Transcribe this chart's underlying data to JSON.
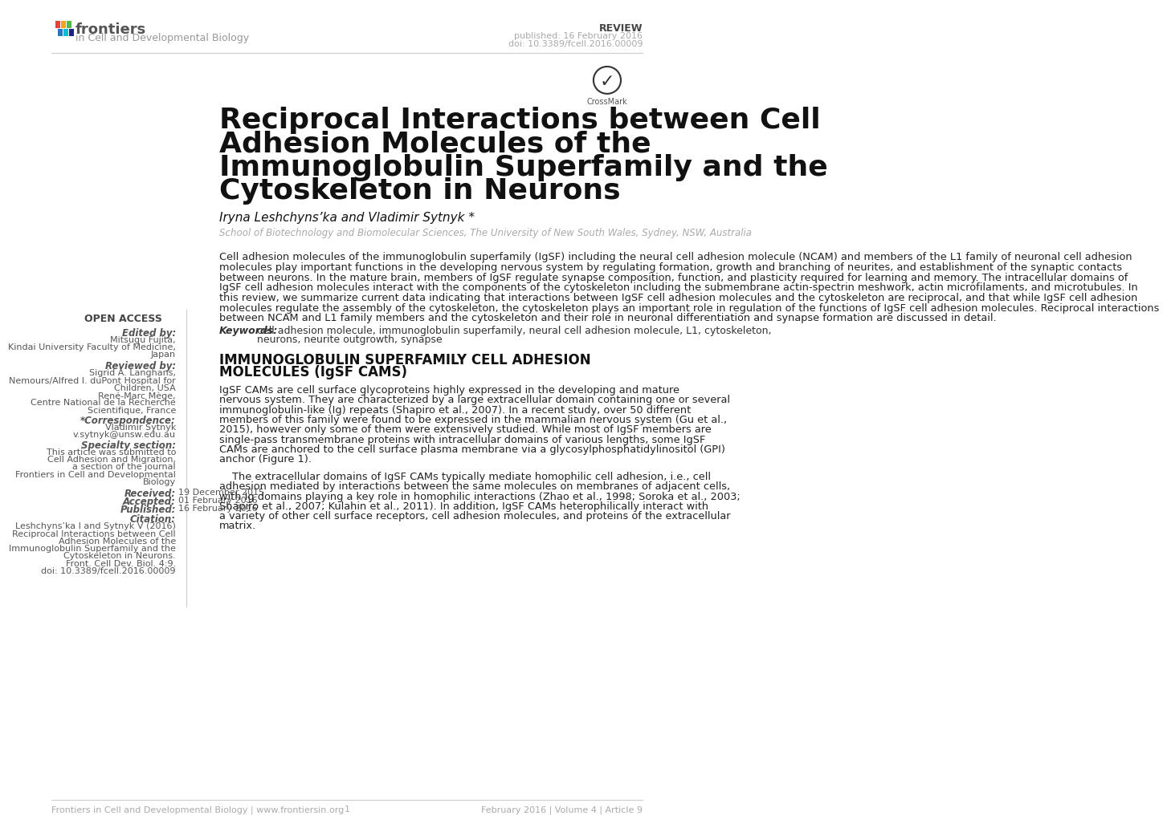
{
  "background_color": "#ffffff",
  "header": {
    "journal_name": "frontiers",
    "journal_subtitle": "in Cell and Developmental Biology",
    "review_label": "REVIEW",
    "published": "published: 16 February 2016",
    "doi": "doi: 10.3389/fcell.2016.00009"
  },
  "title_line1": "Reciprocal Interactions between Cell",
  "title_line2": "Adhesion Molecules of the",
  "title_line3": "Immunoglobulin Superfamily and the",
  "title_line4": "Cytoskeleton in Neurons",
  "authors": "Iryna Leshchyns’ka and Vladimir Sytnyk *",
  "affiliation": "School of Biotechnology and Biomolecular Sciences, The University of New South Wales, Sydney, NSW, Australia",
  "open_access_label": "OPEN ACCESS",
  "edited_by_label": "Edited by:",
  "edited_by_line1": "Mitsugu Fujita,",
  "edited_by_line2": "Kindai University Faculty of Medicine,",
  "edited_by_line3": "Japan",
  "reviewed_by_label": "Reviewed by:",
  "reviewed_by_line1": "Sigrid A. Langhans,",
  "reviewed_by_line2": "Nemours/Alfred I. duPont Hospital for",
  "reviewed_by_line3": "Children, USA",
  "reviewed_by_line4": "René-Marc Mège,",
  "reviewed_by_line5": "Centre National de la Recherche",
  "reviewed_by_line6": "Scientifique, France",
  "correspondence_label": "*Correspondence:",
  "correspondence_line1": "Vladimir Sytnyk",
  "correspondence_line2": "v.sytnyk@unsw.edu.au",
  "specialty_label": "Specialty section:",
  "specialty_line1": "This article was submitted to",
  "specialty_line2": "Cell Adhesion and Migration,",
  "specialty_line3": "a section of the journal",
  "specialty_line4": "Frontiers in Cell and Developmental",
  "specialty_line5": "Biology",
  "received_label": "Received:",
  "received": "19 December 2015",
  "accepted_label": "Accepted:",
  "accepted": "01 February 2016",
  "published_label": "Published:",
  "published_date": "16 February 2016",
  "citation_label": "Citation:",
  "citation_line1": "Leshchyns’ka I and Sytnyk V (2016)",
  "citation_line2": "Reciprocal Interactions between Cell",
  "citation_line3": "Adhesion Molecules of the",
  "citation_line4": "Immunoglobulin Superfamily and the",
  "citation_line5": "Cytoskeleton in Neurons.",
  "citation_line6": "Front. Cell Dev. Biol. 4:9.",
  "citation_line7": "doi: 10.3389/fcell.2016.00009",
  "abstract_lines": [
    "Cell adhesion molecules of the immunoglobulin superfamily (IgSF) including the neural cell adhesion molecule (NCAM) and members of the L1 family of neuronal cell adhesion",
    "molecules play important functions in the developing nervous system by regulating formation, growth and branching of neurites, and establishment of the synaptic contacts",
    "between neurons. In the mature brain, members of IgSF regulate synapse composition, function, and plasticity required for learning and memory. The intracellular domains of",
    "IgSF cell adhesion molecules interact with the components of the cytoskeleton including the submembrane actin-spectrin meshwork, actin microfilaments, and microtubules. In",
    "this review, we summarize current data indicating that interactions between IgSF cell adhesion molecules and the cytoskeleton are reciprocal, and that while IgSF cell adhesion",
    "molecules regulate the assembly of the cytoskeleton, the cytoskeleton plays an important role in regulation of the functions of IgSF cell adhesion molecules. Reciprocal interactions",
    "between NCAM and L1 family members and the cytoskeleton and their role in neuronal differentiation and synapse formation are discussed in detail."
  ],
  "keywords_label": "Keywords:",
  "keywords_line1": "cell adhesion molecule, immunoglobulin superfamily, neural cell adhesion molecule, L1, cytoskeleton,",
  "keywords_line2": "neurons, neurite outgrowth, synapse",
  "section_title_line1": "IMMUNOGLOBULIN SUPERFAMILY CELL ADHESION",
  "section_title_line2": "MOLECULES (IgSF CAMS)",
  "section1_lines": [
    "IgSF CAMs are cell surface glycoproteins highly expressed in the developing and mature",
    "nervous system. They are characterized by a large extracellular domain containing one or several",
    "immunoglobulin-like (Ig) repeats (Shapiro et al., 2007). In a recent study, over 50 different",
    "members of this family were found to be expressed in the mammalian nervous system (Gu et al.,",
    "2015), however only some of them were extensively studied. While most of IgSF members are",
    "single-pass transmembrane proteins with intracellular domains of various lengths, some IgSF",
    "CAMs are anchored to the cell surface plasma membrane via a glycosylphosphatidylinositol (GPI)",
    "anchor (Figure 1)."
  ],
  "section2_lines": [
    "The extracellular domains of IgSF CAMs typically mediate homophilic cell adhesion, i.e., cell",
    "adhesion mediated by interactions between the same molecules on membranes of adjacent cells,",
    "with Ig domains playing a key role in homophilic interactions (Zhao et al., 1998; Soroka et al., 2003;",
    "Shapiro et al., 2007; Kulahin et al., 2011). In addition, IgSF CAMs heterophilically interact with",
    "a variety of other cell surface receptors, cell adhesion molecules, and proteins of the extracellular",
    "matrix."
  ],
  "footer_left": "Frontiers in Cell and Developmental Biology | www.frontiersin.org",
  "footer_center": "1",
  "footer_right": "February 2016 | Volume 4 | Article 9",
  "logo_blocks": [
    [
      0,
      0,
      7,
      12,
      "#e8413b"
    ],
    [
      9,
      0,
      7,
      12,
      "#f4a124"
    ],
    [
      18,
      0,
      7,
      12,
      "#4dbd4a"
    ],
    [
      4,
      13,
      7,
      12,
      "#2878c0"
    ],
    [
      13,
      13,
      7,
      12,
      "#00bcd4"
    ],
    [
      22,
      13,
      7,
      12,
      "#1a237e"
    ]
  ]
}
